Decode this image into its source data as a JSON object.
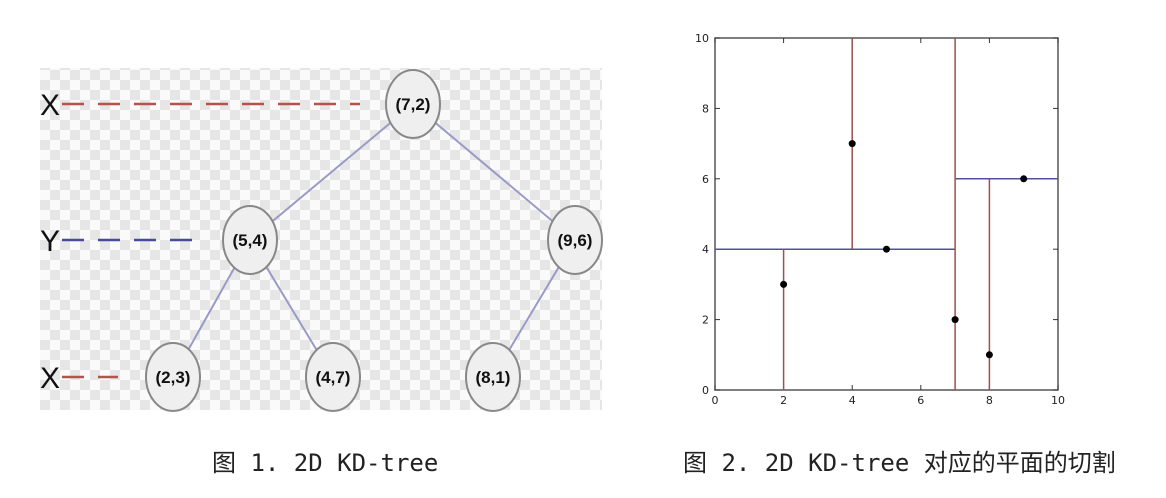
{
  "figure1": {
    "caption": "图 1. 2D KD-tree",
    "levels": [
      {
        "label": "X",
        "color": "#b5524a"
      },
      {
        "label": "Y",
        "color": "#4a4a9a"
      },
      {
        "label": "X",
        "color": "#b5524a"
      }
    ],
    "nodes": [
      {
        "id": "n72",
        "label": "(7,2)",
        "depth": 0
      },
      {
        "id": "n54",
        "label": "(5,4)",
        "depth": 1
      },
      {
        "id": "n96",
        "label": "(9,6)",
        "depth": 1
      },
      {
        "id": "n23",
        "label": "(2,3)",
        "depth": 2
      },
      {
        "id": "n47",
        "label": "(4,7)",
        "depth": 2
      },
      {
        "id": "n81",
        "label": "(8,1)",
        "depth": 2
      }
    ],
    "edges": [
      [
        "n72",
        "n54"
      ],
      [
        "n72",
        "n96"
      ],
      [
        "n54",
        "n23"
      ],
      [
        "n54",
        "n47"
      ],
      [
        "n96",
        "n81"
      ]
    ],
    "colors": {
      "node_fill": "#efefef",
      "node_stroke": "#888888",
      "edge": "#9a9ac8",
      "checker": "#e6e6e6"
    }
  },
  "figure2": {
    "caption": "图 2. 2D KD-tree 对应的平面的切割",
    "chart_data": {
      "type": "scatter",
      "x": [
        2,
        5,
        9,
        4,
        8,
        7
      ],
      "y": [
        3,
        4,
        6,
        7,
        1,
        2
      ],
      "xlim": [
        0,
        10
      ],
      "ylim": [
        0,
        10
      ],
      "x_ticks": [
        "0",
        "2",
        "4",
        "6",
        "8",
        "10"
      ],
      "y_ticks": [
        "0",
        "2",
        "4",
        "6",
        "8",
        "10"
      ],
      "vertical_splits": [
        {
          "x": 7,
          "y_from": 0,
          "y_to": 10
        },
        {
          "x": 2,
          "y_from": 0,
          "y_to": 4
        },
        {
          "x": 4,
          "y_from": 4,
          "y_to": 10
        },
        {
          "x": 8,
          "y_from": 0,
          "y_to": 6
        }
      ],
      "horizontal_splits": [
        {
          "y": 4,
          "x_from": 0,
          "x_to": 7
        },
        {
          "y": 6,
          "x_from": 7,
          "x_to": 10
        }
      ],
      "colors": {
        "vertical": "#a0504a",
        "horizontal": "#5050a0",
        "point": "#000000",
        "frame": "#555555"
      }
    }
  }
}
